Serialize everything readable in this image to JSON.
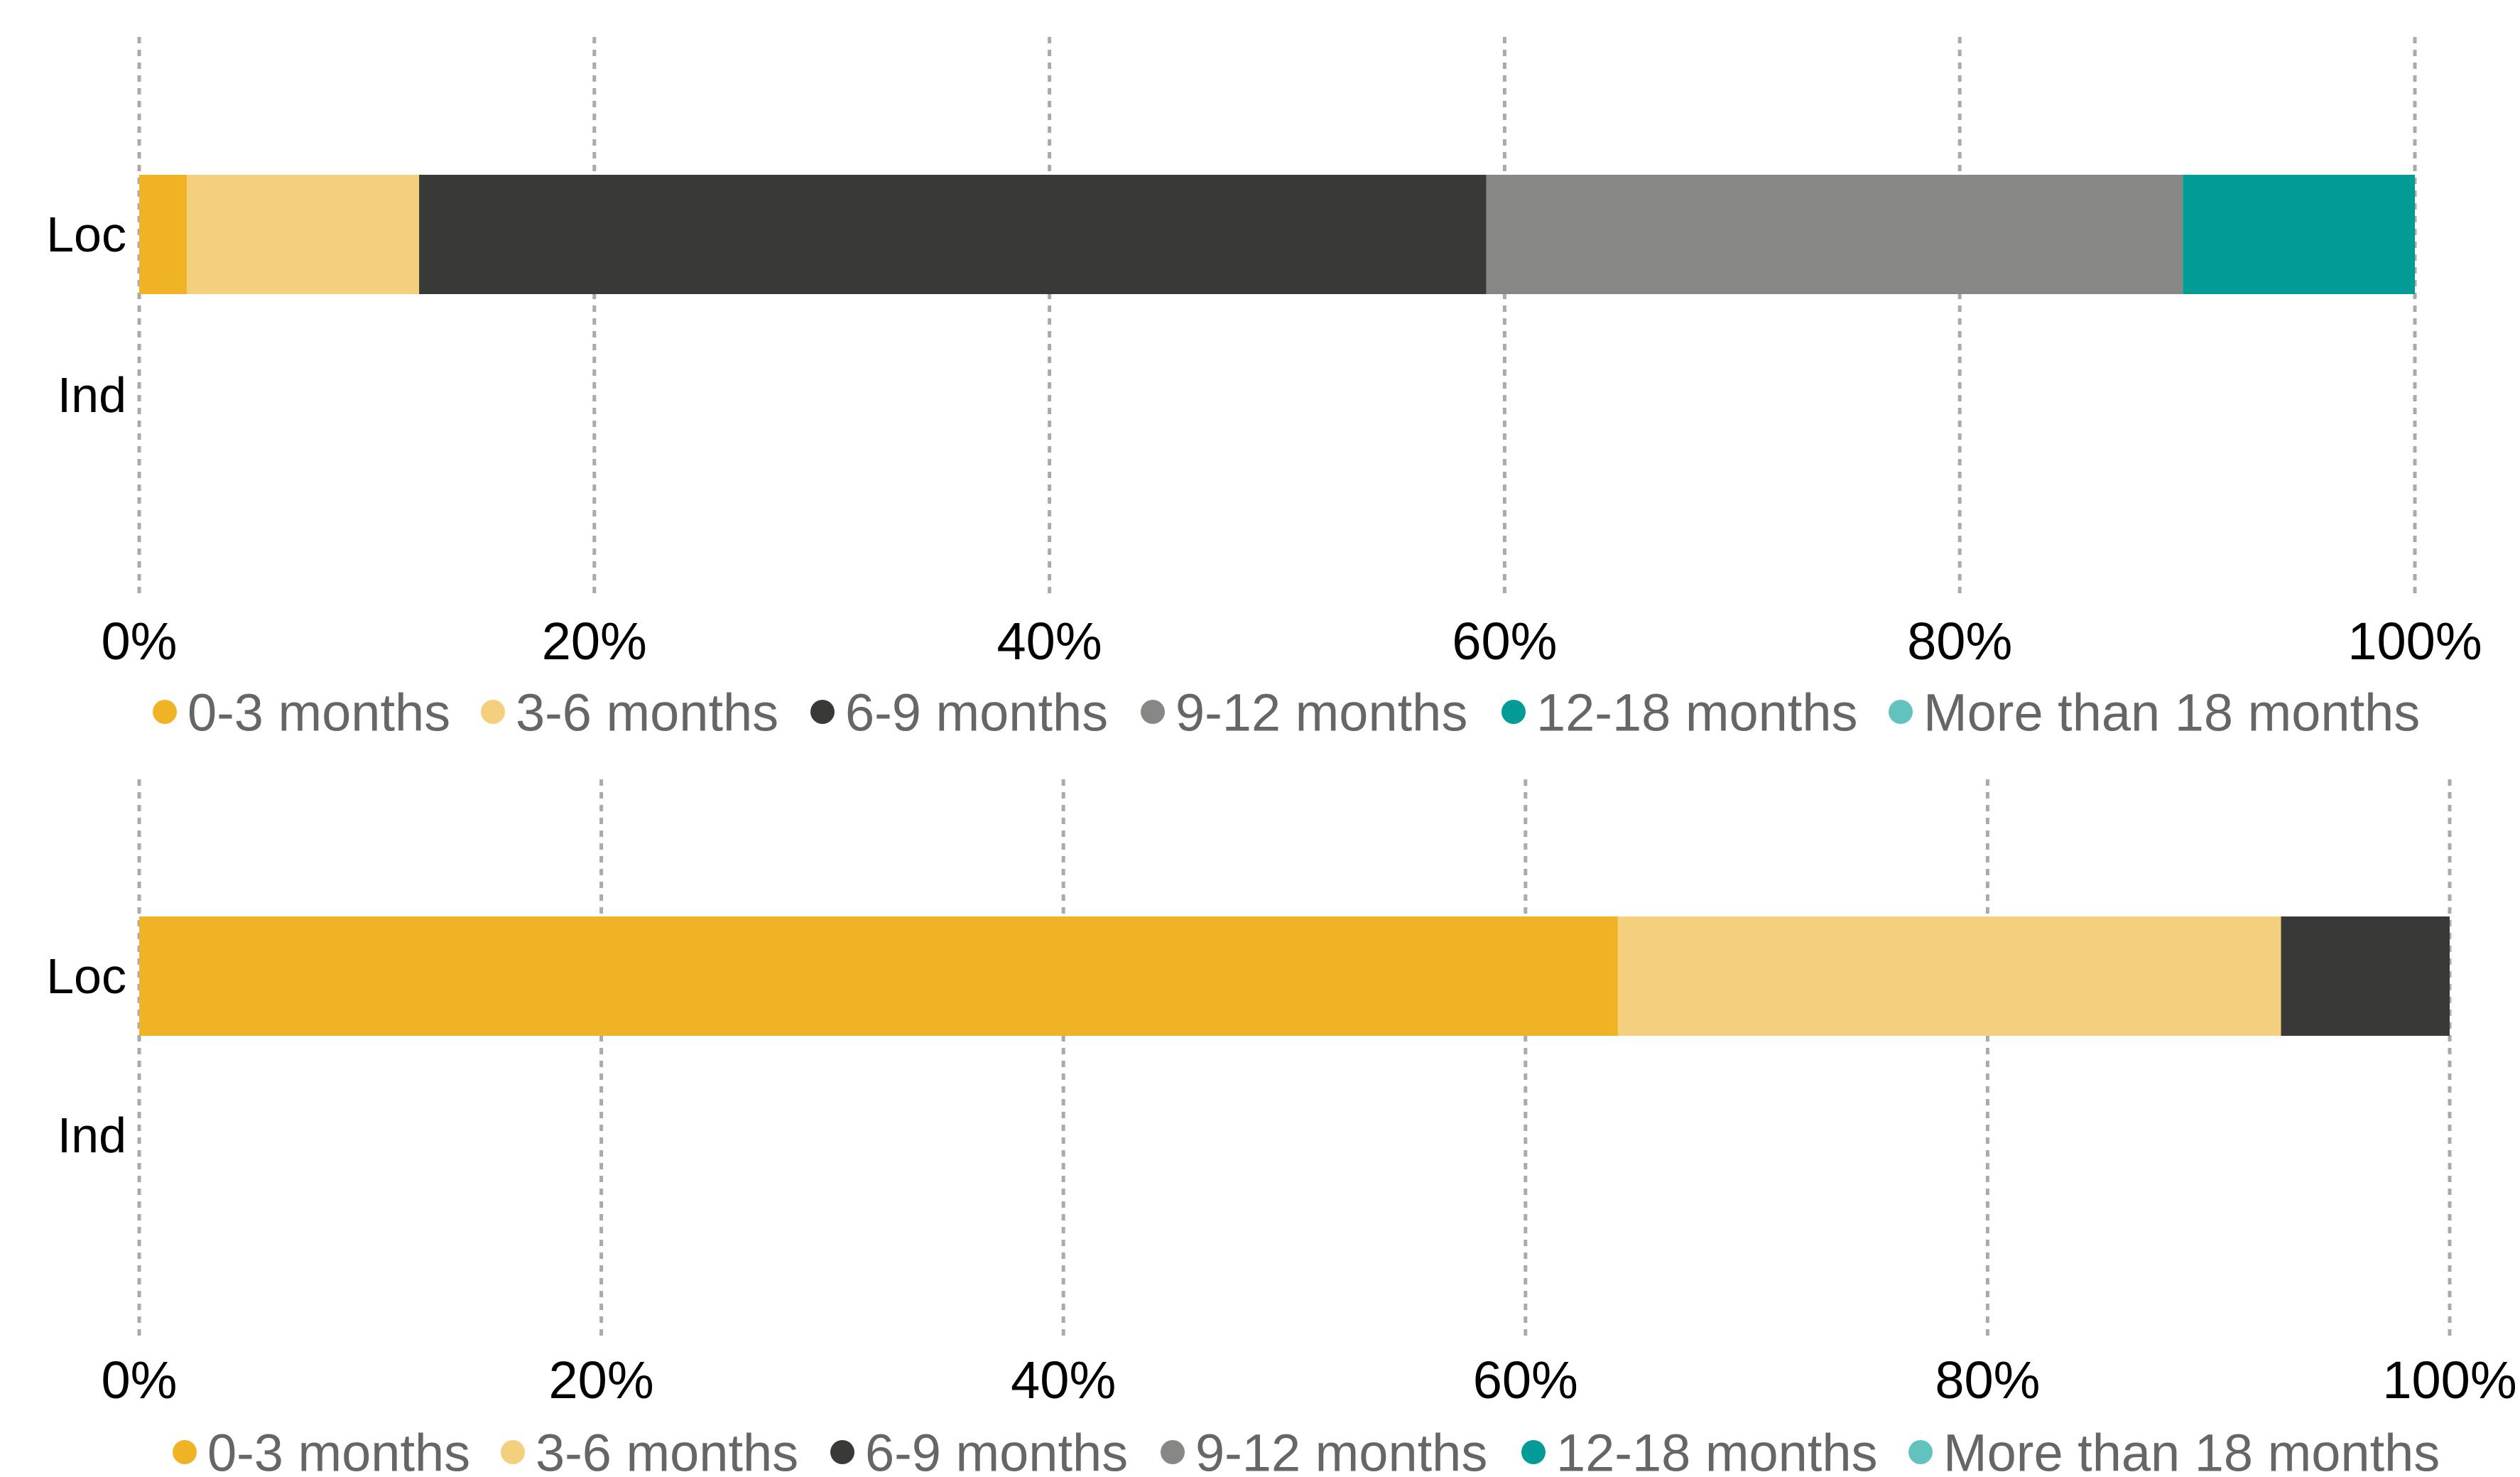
{
  "chart_data": [
    {
      "type": "bar",
      "orientation": "horizontal",
      "stacked": true,
      "categories": [
        "Loc",
        "Ind"
      ],
      "xlim": [
        0,
        100
      ],
      "x_ticks": [
        "0%",
        "20%",
        "40%",
        "60%",
        "80%",
        "100%"
      ],
      "grid": true,
      "legend_position": "bottom",
      "series": [
        {
          "name": "0-3 months",
          "color": "#EFB325",
          "values": [
            2.1,
            null
          ]
        },
        {
          "name": "3-6 months",
          "color": "#F4D07E",
          "values": [
            10.2,
            null
          ]
        },
        {
          "name": "6-9 months",
          "color": "#393A38",
          "values": [
            46.9,
            null
          ]
        },
        {
          "name": "9-12 months",
          "color": "#878885",
          "values": [
            30.6,
            null
          ]
        },
        {
          "name": "12-18 months",
          "color": "#029B95",
          "values": [
            10.2,
            null
          ]
        },
        {
          "name": "More than 18 months",
          "color": "#62C2BD",
          "values": [
            0,
            null
          ]
        }
      ]
    },
    {
      "type": "bar",
      "orientation": "horizontal",
      "stacked": true,
      "categories": [
        "Loc",
        "Ind"
      ],
      "xlim": [
        0,
        100
      ],
      "x_ticks": [
        "0%",
        "20%",
        "40%",
        "60%",
        "80%",
        "100%"
      ],
      "grid": true,
      "legend_position": "bottom",
      "series": [
        {
          "name": "0-3 months",
          "color": "#EFB325",
          "values": [
            64.0,
            null
          ]
        },
        {
          "name": "3-6 months",
          "color": "#F4D07E",
          "values": [
            28.7,
            null
          ]
        },
        {
          "name": "6-9 months",
          "color": "#393A38",
          "values": [
            7.3,
            null
          ]
        },
        {
          "name": "9-12 months",
          "color": "#878885",
          "values": [
            0,
            null
          ]
        },
        {
          "name": "12-18 months",
          "color": "#029B95",
          "values": [
            0,
            null
          ]
        },
        {
          "name": "More than 18 months",
          "color": "#62C2BD",
          "values": [
            0,
            null
          ]
        }
      ]
    }
  ]
}
